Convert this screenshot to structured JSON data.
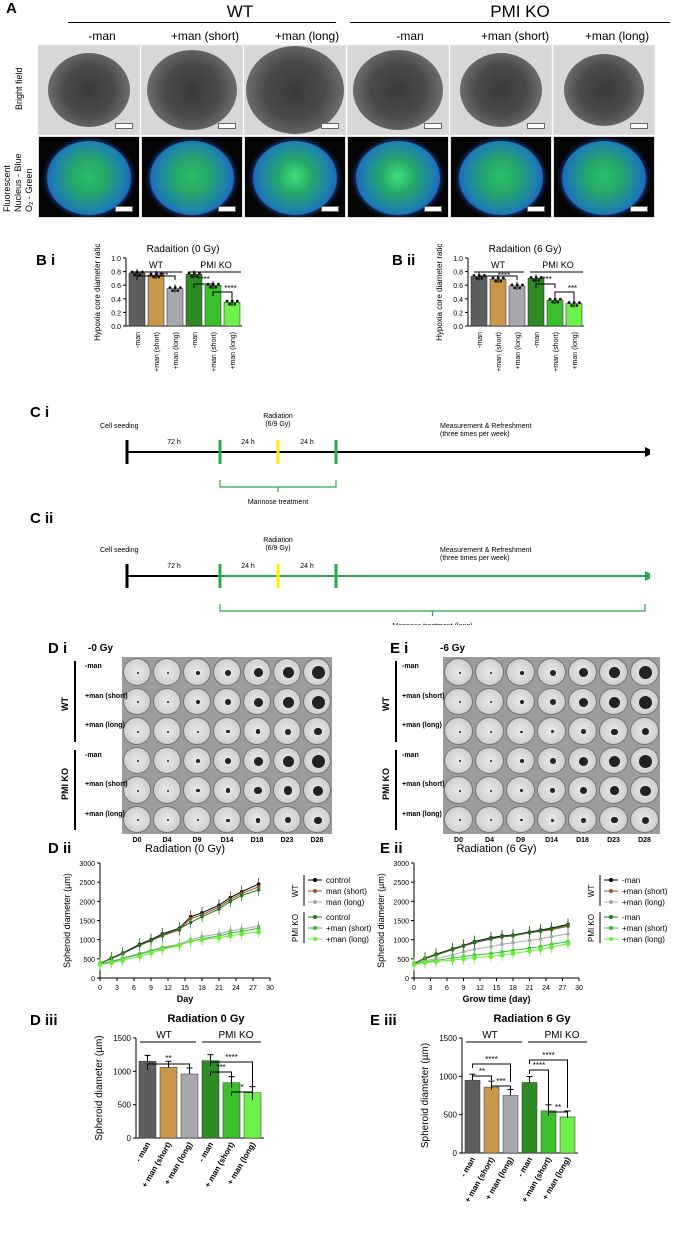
{
  "panelA": {
    "label": "A",
    "wt": "WT",
    "pmi": "PMI KO",
    "conds": [
      "-man",
      "+man (short)",
      "+man (long)",
      "-man",
      "+man (short)",
      "+man (long)"
    ],
    "row1": "Bright field",
    "row2a": "Fluorescent",
    "row2b": "Nucleus - Blue",
    "row2c": "O₂ - Green"
  },
  "colors": {
    "c1": "#5e5e5e",
    "c2": "#c9964a",
    "c3": "#a8a8ac",
    "c4": "#2e8b23",
    "c5": "#39c02a",
    "c6": "#6ef04a",
    "line_ctl": "#000000",
    "line_short": "#a0522d",
    "line_long": "#a8a8a8",
    "line_g1": "#1f7a1f",
    "line_g2": "#33bb33",
    "line_g3": "#66ee33"
  },
  "panelB": {
    "i_label": "B i",
    "ii_label": "B ii",
    "titles": [
      "Radaition (0 Gy)",
      "Radaition (6 Gy)"
    ],
    "ylabel": "Hypoxia core diameter ratio",
    "wt": "WT",
    "pmi": "PMI KO",
    "cats": [
      "-man",
      "+man (short)",
      "+man (long)",
      "-man",
      "+man (short)",
      "+man (long)"
    ],
    "ticks": [
      "0.0",
      "0.2",
      "0.4",
      "0.6",
      "0.8",
      "1.0"
    ],
    "sig_i": [
      "****",
      "****",
      "****"
    ],
    "sig_ii": [
      "****",
      "****",
      "***"
    ]
  },
  "panelC": {
    "i_label": "C i",
    "ii_label": "C ii",
    "seed": "Cell seeding",
    "t72": "72 h",
    "t24a": "24 h",
    "t24b": "24 h",
    "rad1": "Radiation",
    "rad2": "(6/9 Gy)",
    "meas1": "Measurement & Refreshment",
    "meas2": "(three times per week)",
    "mann_i": "Mannose treatment",
    "mann_ii": "Mannose treatment (long)"
  },
  "panelD": {
    "i_label": "D i",
    "dose_i": "-0 Gy",
    "e_label": "E i",
    "dose_e": "-6 Gy",
    "wt": "WT",
    "pmi": "PMI KO",
    "rows": [
      "-man",
      "+man (short)",
      "+man (long)",
      "-man",
      "+man (short)",
      "+man (long)"
    ],
    "days": [
      "D0",
      "D4",
      "D9",
      "D14",
      "D18",
      "D23",
      "D28"
    ]
  },
  "panelDii": {
    "label": "D ii",
    "elabel": "E ii",
    "title_d": "Radiation (0 Gy)",
    "title_e": "Radiation (6 Gy)",
    "ylabel": "Spheroid diameter (µm)",
    "xlabel_d": "Day",
    "xlabel_e": "Grow time (day)",
    "legend_d": [
      "control",
      "man (short)",
      "man (long)",
      "control",
      "+man (short)",
      "+man (long)"
    ],
    "legend_e": [
      "-man",
      "+man (short)",
      "+man (long)",
      "-man",
      "+man (short)",
      "+man (long)"
    ],
    "wt": "WT",
    "pmi": "PMI KO",
    "yticks": [
      "0",
      "500",
      "1000",
      "1500",
      "2000",
      "2500",
      "3000"
    ],
    "xticks": [
      "0",
      "3",
      "6",
      "9",
      "12",
      "15",
      "18",
      "21",
      "24",
      "27",
      "30"
    ]
  },
  "panelDiii": {
    "label": "D iii",
    "elabel": "E iii",
    "title_d": "Radiation 0 Gy",
    "title_e": "Radiation 6 Gy",
    "ylabel": "Spheroid diameter (µm)",
    "cats": [
      "- man",
      "+ man (short)",
      "+ man (long)",
      "- man",
      "+ man (short)",
      "+ man (long)"
    ],
    "yticks": [
      "0",
      "500",
      "1000",
      "1500"
    ],
    "wt": "WT",
    "pmi": "PMI KO",
    "sig_d": [
      "**",
      "***",
      "****",
      "*"
    ],
    "sig_e": [
      "**",
      "****",
      "***",
      "****",
      "****",
      "**"
    ]
  },
  "chart_data": [
    {
      "type": "bar",
      "title": "Radaition (0 Gy)",
      "ylabel": "Hypoxia core diameter ratio",
      "categories": [
        "-man",
        "+man (short)",
        "+man (long)",
        "-man",
        "+man (short)",
        "+man (long)"
      ],
      "values": [
        0.78,
        0.75,
        0.55,
        0.76,
        0.6,
        0.35
      ],
      "ylim": [
        0,
        1.0
      ]
    },
    {
      "type": "bar",
      "title": "Radaition (6 Gy)",
      "ylabel": "Hypoxia core diameter ratio",
      "categories": [
        "-man",
        "+man (short)",
        "+man (long)",
        "-man",
        "+man (short)",
        "+man (long)"
      ],
      "values": [
        0.73,
        0.69,
        0.59,
        0.7,
        0.38,
        0.33
      ],
      "ylim": [
        0,
        1.0
      ]
    },
    {
      "type": "line",
      "title": "Radiation (0 Gy)",
      "xlabel": "Day",
      "ylabel": "Spheroid diameter (µm)",
      "x": [
        0,
        2,
        4,
        7,
        9,
        11,
        14,
        16,
        18,
        21,
        23,
        25,
        28
      ],
      "ylim": [
        0,
        3000
      ],
      "xlim": [
        0,
        30
      ],
      "series": [
        {
          "name": "WT control",
          "values": [
            380,
            520,
            650,
            880,
            1000,
            1150,
            1300,
            1600,
            1700,
            1900,
            2100,
            2250,
            2450
          ]
        },
        {
          "name": "WT man (short)",
          "values": [
            380,
            500,
            630,
            850,
            970,
            1100,
            1250,
            1550,
            1650,
            1850,
            2050,
            2200,
            2380
          ]
        },
        {
          "name": "WT man (long)",
          "values": [
            370,
            440,
            520,
            640,
            720,
            800,
            880,
            1000,
            1080,
            1150,
            1230,
            1280,
            1350
          ]
        },
        {
          "name": "PMI KO control",
          "values": [
            380,
            510,
            640,
            860,
            980,
            1120,
            1280,
            1450,
            1600,
            1800,
            2000,
            2150,
            2300
          ]
        },
        {
          "name": "PMI KO +man (short)",
          "values": [
            360,
            420,
            500,
            620,
            700,
            780,
            860,
            960,
            1020,
            1100,
            1170,
            1220,
            1300
          ]
        },
        {
          "name": "PMI KO +man (long)",
          "values": [
            350,
            400,
            460,
            560,
            650,
            750,
            850,
            960,
            1000,
            1050,
            1100,
            1150,
            1200
          ]
        }
      ]
    },
    {
      "type": "line",
      "title": "Radiation (6 Gy)",
      "xlabel": "Grow time (day)",
      "ylabel": "Spheroid diameter (µm)",
      "x": [
        0,
        2,
        4,
        7,
        9,
        11,
        14,
        16,
        18,
        21,
        23,
        25,
        28
      ],
      "ylim": [
        0,
        3000
      ],
      "xlim": [
        0,
        30
      ],
      "series": [
        {
          "name": "WT -man",
          "values": [
            380,
            520,
            620,
            760,
            850,
            950,
            1050,
            1100,
            1120,
            1200,
            1250,
            1300,
            1400
          ]
        },
        {
          "name": "WT +man (short)",
          "values": [
            380,
            510,
            600,
            740,
            830,
            920,
            1020,
            1070,
            1100,
            1180,
            1220,
            1260,
            1350
          ]
        },
        {
          "name": "WT +man (long)",
          "values": [
            370,
            450,
            510,
            600,
            680,
            750,
            820,
            880,
            920,
            980,
            1020,
            1080,
            1150
          ]
        },
        {
          "name": "PMI KO -man",
          "values": [
            380,
            500,
            600,
            740,
            840,
            930,
            1020,
            1080,
            1110,
            1180,
            1230,
            1280,
            1380
          ]
        },
        {
          "name": "PMI KO +man (short)",
          "values": [
            360,
            420,
            460,
            520,
            560,
            600,
            640,
            680,
            720,
            780,
            820,
            880,
            950
          ]
        },
        {
          "name": "PMI KO +man (long)",
          "values": [
            350,
            400,
            430,
            470,
            500,
            530,
            560,
            600,
            640,
            700,
            750,
            800,
            900
          ]
        }
      ]
    },
    {
      "type": "bar",
      "title": "Radiation 0 Gy",
      "ylabel": "Spheroid diameter (µm)",
      "categories": [
        "- man",
        "+ man (short)",
        "+ man (long)",
        "- man",
        "+ man (short)",
        "+ man (long)"
      ],
      "values": [
        1150,
        1060,
        960,
        1160,
        830,
        680
      ],
      "ylim": [
        0,
        1500
      ]
    },
    {
      "type": "bar",
      "title": "Radiation 6 Gy",
      "ylabel": "Spheroid diameter (µm)",
      "categories": [
        "- man",
        "+ man (short)",
        "+ man (long)",
        "- man",
        "+ man (short)",
        "+ man (long)"
      ],
      "values": [
        950,
        860,
        750,
        920,
        550,
        470
      ],
      "ylim": [
        0,
        1500
      ]
    }
  ]
}
